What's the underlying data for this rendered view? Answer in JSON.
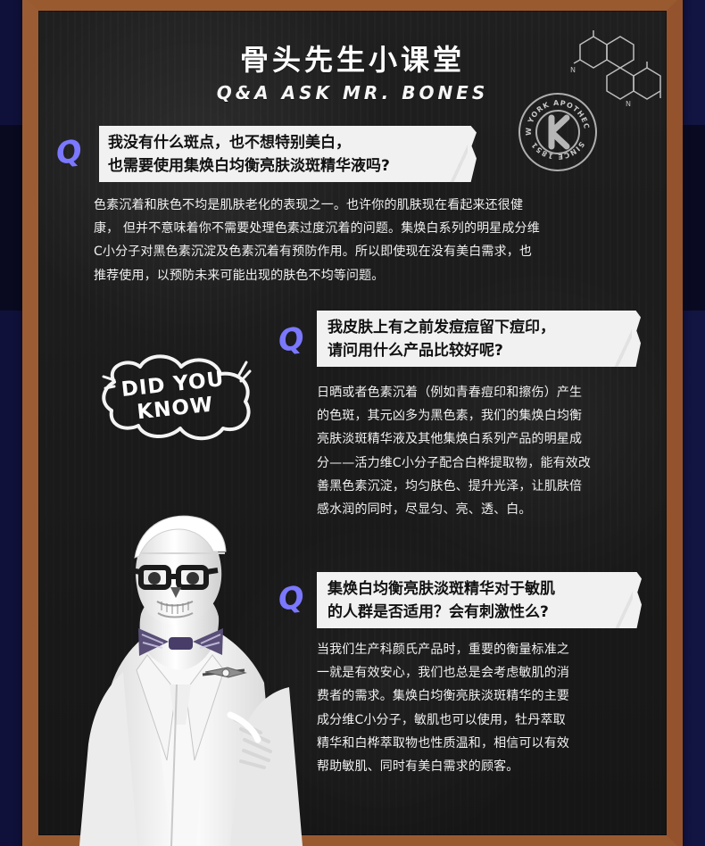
{
  "page": {
    "title": "骨头先生小课堂",
    "subtitle": "Q&A ASK MR. BONES",
    "stamp": {
      "top": "NEW YORK APOTHECARY",
      "bottom": "SINCE 1851",
      "center": "K"
    },
    "did_you_know": "DID YOU KNOW"
  },
  "qa": [
    {
      "q_mark": "Q",
      "question_lines": [
        "我没有什么斑点，也不想特别美白，",
        "也需要使用集焕白均衡亮肤淡斑精华液吗?"
      ],
      "answer_lines": [
        "色素沉着和肤色不均是肌肤老化的表现之一。也许你的肌肤现在看起来还很健",
        "康，  但并不意味着你不需要处理色素过度沉着的问题。集焕白系列的明星成分维",
        "C小分子对黑色素沉淀及色素沉着有预防作用。所以即使现在没有美白需求，也",
        "推荐使用，以预防未来可能出现的肤色不均等问题。"
      ]
    },
    {
      "q_mark": "Q",
      "question_lines": [
        "我皮肤上有之前发痘痘留下痘印，",
        "请问用什么产品比较好呢?"
      ],
      "answer_lines": [
        "日晒或者色素沉着（例如青春痘印和擦伤）产生",
        "的色斑，其元凶多为黑色素，我们的集焕白均衡",
        "亮肤淡斑精华液及其他集焕白系列产品的明星成",
        "分——活力维C小分子配合白桦提取物，能有效改",
        "善黑色素沉淀，均匀肤色、提升光泽，让肌肤倍",
        "感水润的同时，尽显匀、亮、透、白。"
      ]
    },
    {
      "q_mark": "Q",
      "question_lines": [
        "集焕白均衡亮肤淡斑精华对于敏肌",
        "的人群是否适用？会有刺激性么?"
      ],
      "answer_lines": [
        "当我们生产科颜氏产品时，重要的衡量标准之",
        "一就是有效安心，我们也总是会考虑敏肌的消",
        "费者的需求。集焕白均衡亮肤淡斑精华的主要",
        "成分维C小分子，敏肌也可以使用，牡丹萃取",
        "精华和白桦萃取物也性质温和，相信可以有效",
        "帮助敏肌、同时有美白需求的顾客。"
      ]
    }
  ]
}
